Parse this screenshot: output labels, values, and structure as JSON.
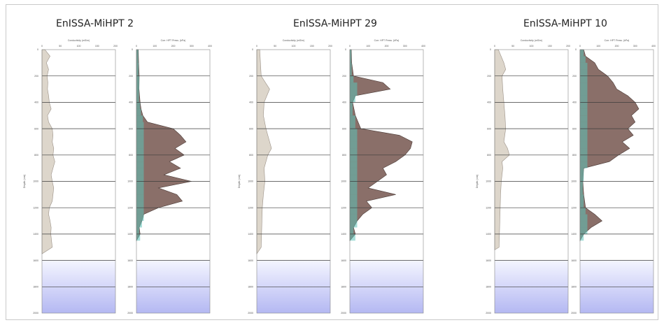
{
  "colors": {
    "band_top": "#f4f5ff",
    "band_bottom": "#b4b8f2",
    "conductivity_fill": "#ddd6cb",
    "conductivity_line": "#9a9086",
    "hpt_fill": "#8a6f69",
    "hpt_line": "#4b3b37",
    "low_pressure_fill": "#5cc2b8",
    "gridline": "#3c3c3c"
  },
  "panels": [
    {
      "title": "EnISSA-MiHPT 2",
      "ylabel": "Depth (cm)",
      "conductivity_label": "Conductivity (mS/m)",
      "pressure_label": "Corr. HPT Press. (kPa)"
    },
    {
      "title": "EnISSA-MiHPT 29",
      "ylabel": "Depth (cm)",
      "conductivity_label": "Conductivity (mS/m)",
      "pressure_label": "Corr. HPT Press. (kPa)"
    },
    {
      "title": "EnISSA-MiHPT 10",
      "ylabel": "Depth (cm)",
      "conductivity_label": "Conductivity (mS/m)",
      "pressure_label": "Corr. HPT Press. (kPa)"
    }
  ],
  "chart_data": [
    {
      "type": "area",
      "title": "EnISSA-MiHPT 2",
      "ylabel": "Depth (cm)",
      "y_ticks": [
        0,
        200,
        400,
        600,
        800,
        1000,
        1200,
        1400,
        1600,
        1800,
        2000
      ],
      "ylim": [
        0,
        2000
      ],
      "conductivity": {
        "xlabel": "Conductivity (mS/m)",
        "xlim": [
          0,
          200
        ],
        "x_ticks": [
          0,
          50,
          100,
          150,
          200
        ],
        "depth": [
          0,
          50,
          100,
          150,
          200,
          250,
          300,
          350,
          400,
          450,
          500,
          550,
          600,
          650,
          700,
          750,
          800,
          850,
          900,
          950,
          1000,
          1050,
          1100,
          1150,
          1200,
          1250,
          1300,
          1350,
          1400,
          1450,
          1500,
          1550
        ],
        "values": [
          8,
          22,
          12,
          18,
          14,
          16,
          15,
          18,
          20,
          25,
          15,
          18,
          28,
          30,
          28,
          32,
          30,
          35,
          30,
          25,
          28,
          32,
          30,
          28,
          20,
          18,
          22,
          25,
          24,
          26,
          28,
          0
        ]
      },
      "hpt_pressure": {
        "xlabel": "Corr. HPT Press. (kPa)",
        "xlim": [
          0,
          400
        ],
        "x_ticks": [
          0,
          100,
          200,
          300,
          400
        ],
        "depth": [
          0,
          100,
          200,
          300,
          400,
          450,
          500,
          550,
          600,
          650,
          700,
          750,
          800,
          850,
          900,
          950,
          1000,
          1050,
          1100,
          1150,
          1200,
          1250,
          1300,
          1350,
          1400,
          1450
        ],
        "values": [
          10,
          12,
          15,
          14,
          20,
          25,
          35,
          60,
          200,
          240,
          270,
          210,
          260,
          180,
          240,
          150,
          300,
          120,
          220,
          250,
          120,
          40,
          30,
          15,
          20,
          0
        ]
      }
    },
    {
      "type": "area",
      "title": "EnISSA-MiHPT 29",
      "ylabel": "Depth (cm)",
      "y_ticks": [
        0,
        200,
        400,
        600,
        800,
        1000,
        1200,
        1400,
        1600,
        1800,
        2000
      ],
      "ylim": [
        0,
        2000
      ],
      "conductivity": {
        "xlabel": "Conductivity (mS/m)",
        "xlim": [
          0,
          200
        ],
        "x_ticks": [
          0,
          50,
          100,
          150,
          200
        ],
        "depth": [
          0,
          100,
          200,
          300,
          400,
          500,
          600,
          650,
          700,
          750,
          800,
          900,
          1000,
          1100,
          1200,
          1300,
          1400,
          1500,
          1550
        ],
        "values": [
          8,
          10,
          12,
          35,
          20,
          18,
          25,
          30,
          35,
          40,
          30,
          20,
          22,
          18,
          15,
          14,
          13,
          12,
          0
        ]
      },
      "hpt_pressure": {
        "xlabel": "Corr. HPT Press. (kPa)",
        "xlim": [
          0,
          400
        ],
        "x_ticks": [
          0,
          100,
          200,
          300,
          400
        ],
        "depth": [
          0,
          100,
          200,
          250,
          300,
          350,
          400,
          500,
          600,
          650,
          700,
          750,
          800,
          850,
          900,
          950,
          1000,
          1050,
          1100,
          1150,
          1200,
          1250,
          1300,
          1350,
          1400,
          1450
        ],
        "values": [
          8,
          10,
          20,
          180,
          220,
          30,
          15,
          30,
          60,
          270,
          340,
          330,
          300,
          250,
          180,
          200,
          150,
          100,
          250,
          90,
          120,
          70,
          40,
          20,
          30,
          0
        ]
      }
    },
    {
      "type": "area",
      "title": "EnISSA-MiHPT 10",
      "ylabel": "Depth (cm)",
      "y_ticks": [
        0,
        200,
        400,
        600,
        800,
        1000,
        1200,
        1400,
        1600,
        1800,
        2000
      ],
      "ylim": [
        0,
        2000
      ],
      "conductivity": {
        "xlabel": "Conductivity (mS/m)",
        "xlim": [
          0,
          200
        ],
        "x_ticks": [
          0,
          50,
          100,
          150,
          200
        ],
        "depth": [
          0,
          100,
          150,
          200,
          300,
          400,
          500,
          600,
          700,
          750,
          800,
          850,
          900,
          1000,
          1100,
          1200,
          1300,
          1400,
          1500,
          1520
        ],
        "values": [
          10,
          25,
          30,
          20,
          22,
          25,
          28,
          30,
          25,
          35,
          40,
          20,
          22,
          18,
          16,
          15,
          14,
          13,
          12,
          0
        ]
      },
      "hpt_pressure": {
        "xlabel": "Corr. HPT Press. (kPa)",
        "xlim": [
          0,
          400
        ],
        "x_ticks": [
          0,
          100,
          200,
          300,
          400
        ],
        "depth": [
          0,
          50,
          100,
          150,
          200,
          250,
          300,
          350,
          400,
          450,
          500,
          550,
          600,
          650,
          700,
          750,
          800,
          850,
          900,
          1000,
          1100,
          1200,
          1250,
          1300,
          1350,
          1400,
          1450
        ],
        "values": [
          20,
          30,
          80,
          100,
          150,
          180,
          200,
          260,
          300,
          320,
          280,
          300,
          260,
          290,
          230,
          270,
          210,
          160,
          20,
          15,
          20,
          30,
          80,
          120,
          60,
          20,
          0
        ]
      }
    }
  ]
}
